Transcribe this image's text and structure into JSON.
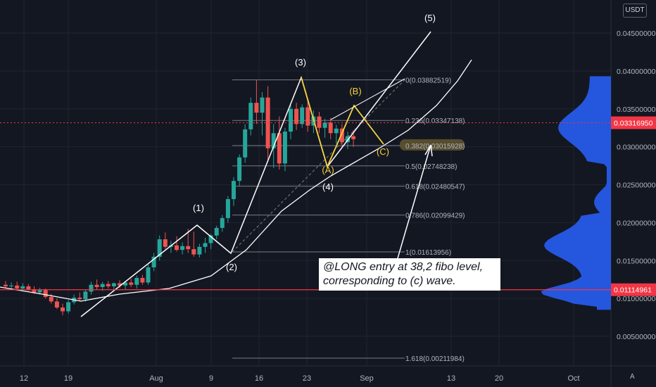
{
  "currency_button": "USDT",
  "auto_button": "A",
  "note_lines": [
    "@LONG entry at 38,2 fibo level,",
    "corresponding to (c) wave."
  ],
  "colors": {
    "background": "#131722",
    "grid": "#1f2430",
    "up": "#26a69a",
    "down": "#ef5350",
    "dim_up": "#26a69a",
    "trend_line": "#ffffff",
    "highlight_yellow": "#f5d33c",
    "price_line_red": "#f23645",
    "volume_profile": "#2962ff",
    "fib_line": "#787b86"
  },
  "chart_data": {
    "type": "candlestick",
    "price_axis": {
      "ticks": [
        "0.04500000",
        "0.04000000",
        "0.03500000",
        "0.03000000",
        "0.02500000",
        "0.02000000",
        "0.01500000",
        "0.01000000",
        "0.00500000"
      ],
      "ylim": [
        0.0,
        0.049
      ]
    },
    "time_axis": [
      "12",
      "19",
      "Aug",
      "9",
      "16",
      "23",
      "Sep",
      "13",
      "20",
      "Oct"
    ],
    "price_markers": [
      {
        "value": 0.0331695,
        "label": "0.03316950",
        "color": "#f23645"
      },
      {
        "value": 0.01114961,
        "label": "0.01114961",
        "color": "#f23645"
      }
    ],
    "fibonacci": [
      {
        "ratio": "0",
        "value": "0.03882519"
      },
      {
        "ratio": "0.236",
        "value": "0.03347138"
      },
      {
        "ratio": "0.382",
        "value": "0.03015928"
      },
      {
        "ratio": "0.5",
        "value": "0.02748238"
      },
      {
        "ratio": "0.618",
        "value": "0.02480547"
      },
      {
        "ratio": "0.786",
        "value": "0.02099429"
      },
      {
        "ratio": "1",
        "value": "0.01613956"
      },
      {
        "ratio": "1.618",
        "value": "0.00211984"
      }
    ],
    "wave_labels": [
      {
        "text": "(1)",
        "color": "white"
      },
      {
        "text": "(2)",
        "color": "white"
      },
      {
        "text": "(3)",
        "color": "white"
      },
      {
        "text": "(4)",
        "color": "white"
      },
      {
        "text": "(5)",
        "color": "white"
      },
      {
        "text": "(A)",
        "color": "yellow"
      },
      {
        "text": "(B)",
        "color": "yellow"
      },
      {
        "text": "(C)",
        "color": "yellow"
      }
    ],
    "candles": [
      {
        "o": 0.0118,
        "h": 0.0123,
        "l": 0.0114,
        "c": 0.0116
      },
      {
        "o": 0.0116,
        "h": 0.0121,
        "l": 0.0112,
        "c": 0.0117
      },
      {
        "o": 0.0117,
        "h": 0.0122,
        "l": 0.011,
        "c": 0.0113
      },
      {
        "o": 0.0113,
        "h": 0.012,
        "l": 0.0111,
        "c": 0.0116
      },
      {
        "o": 0.0116,
        "h": 0.0119,
        "l": 0.011,
        "c": 0.0112
      },
      {
        "o": 0.0112,
        "h": 0.0116,
        "l": 0.0106,
        "c": 0.0108
      },
      {
        "o": 0.0108,
        "h": 0.0114,
        "l": 0.0105,
        "c": 0.0111
      },
      {
        "o": 0.0111,
        "h": 0.0113,
        "l": 0.01,
        "c": 0.0102
      },
      {
        "o": 0.0102,
        "h": 0.0106,
        "l": 0.0093,
        "c": 0.0096
      },
      {
        "o": 0.0096,
        "h": 0.01,
        "l": 0.0086,
        "c": 0.0088
      },
      {
        "o": 0.0088,
        "h": 0.0093,
        "l": 0.0078,
        "c": 0.0083
      },
      {
        "o": 0.0083,
        "h": 0.0098,
        "l": 0.008,
        "c": 0.0095
      },
      {
        "o": 0.0095,
        "h": 0.0105,
        "l": 0.0092,
        "c": 0.0101
      },
      {
        "o": 0.0101,
        "h": 0.0108,
        "l": 0.0097,
        "c": 0.0099
      },
      {
        "o": 0.0099,
        "h": 0.0112,
        "l": 0.0096,
        "c": 0.0109
      },
      {
        "o": 0.0109,
        "h": 0.0122,
        "l": 0.0105,
        "c": 0.0118
      },
      {
        "o": 0.0118,
        "h": 0.0125,
        "l": 0.0112,
        "c": 0.0115
      },
      {
        "o": 0.0115,
        "h": 0.0122,
        "l": 0.011,
        "c": 0.0119
      },
      {
        "o": 0.0119,
        "h": 0.0123,
        "l": 0.0113,
        "c": 0.0116
      },
      {
        "o": 0.0116,
        "h": 0.0121,
        "l": 0.0112,
        "c": 0.012
      },
      {
        "o": 0.012,
        "h": 0.0124,
        "l": 0.0114,
        "c": 0.0117
      },
      {
        "o": 0.0117,
        "h": 0.0123,
        "l": 0.0112,
        "c": 0.0121
      },
      {
        "o": 0.0121,
        "h": 0.0126,
        "l": 0.0115,
        "c": 0.0118
      },
      {
        "o": 0.0118,
        "h": 0.013,
        "l": 0.0113,
        "c": 0.0127
      },
      {
        "o": 0.0127,
        "h": 0.0131,
        "l": 0.0118,
        "c": 0.0121
      },
      {
        "o": 0.0121,
        "h": 0.0145,
        "l": 0.0118,
        "c": 0.0141
      },
      {
        "o": 0.0141,
        "h": 0.016,
        "l": 0.0136,
        "c": 0.0155
      },
      {
        "o": 0.0155,
        "h": 0.0183,
        "l": 0.015,
        "c": 0.0178
      },
      {
        "o": 0.0178,
        "h": 0.0187,
        "l": 0.0165,
        "c": 0.0168
      },
      {
        "o": 0.0168,
        "h": 0.0176,
        "l": 0.016,
        "c": 0.017
      },
      {
        "o": 0.017,
        "h": 0.0182,
        "l": 0.0162,
        "c": 0.0164
      },
      {
        "o": 0.0164,
        "h": 0.0174,
        "l": 0.0158,
        "c": 0.0169
      },
      {
        "o": 0.0169,
        "h": 0.0192,
        "l": 0.016,
        "c": 0.0165
      },
      {
        "o": 0.0165,
        "h": 0.0188,
        "l": 0.0155,
        "c": 0.0158
      },
      {
        "o": 0.0158,
        "h": 0.0172,
        "l": 0.0154,
        "c": 0.0168
      },
      {
        "o": 0.0168,
        "h": 0.018,
        "l": 0.016,
        "c": 0.0173
      },
      {
        "o": 0.0173,
        "h": 0.0185,
        "l": 0.0165,
        "c": 0.0183
      },
      {
        "o": 0.0183,
        "h": 0.0196,
        "l": 0.0178,
        "c": 0.0193
      },
      {
        "o": 0.0193,
        "h": 0.021,
        "l": 0.0188,
        "c": 0.0206
      },
      {
        "o": 0.0206,
        "h": 0.0235,
        "l": 0.02,
        "c": 0.0231
      },
      {
        "o": 0.0231,
        "h": 0.026,
        "l": 0.0222,
        "c": 0.0255
      },
      {
        "o": 0.0255,
        "h": 0.029,
        "l": 0.0248,
        "c": 0.0286
      },
      {
        "o": 0.0286,
        "h": 0.033,
        "l": 0.0279,
        "c": 0.0323
      },
      {
        "o": 0.0323,
        "h": 0.0365,
        "l": 0.0315,
        "c": 0.0358
      },
      {
        "o": 0.0358,
        "h": 0.0388,
        "l": 0.033,
        "c": 0.0345
      },
      {
        "o": 0.0345,
        "h": 0.0372,
        "l": 0.0315,
        "c": 0.0365
      },
      {
        "o": 0.0365,
        "h": 0.038,
        "l": 0.028,
        "c": 0.0298
      },
      {
        "o": 0.0298,
        "h": 0.033,
        "l": 0.0272,
        "c": 0.0318
      },
      {
        "o": 0.0318,
        "h": 0.034,
        "l": 0.027,
        "c": 0.0278
      },
      {
        "o": 0.0278,
        "h": 0.0325,
        "l": 0.0268,
        "c": 0.032
      },
      {
        "o": 0.032,
        "h": 0.0355,
        "l": 0.031,
        "c": 0.035
      },
      {
        "o": 0.035,
        "h": 0.0358,
        "l": 0.0322,
        "c": 0.033
      },
      {
        "o": 0.033,
        "h": 0.0356,
        "l": 0.0325,
        "c": 0.0352
      },
      {
        "o": 0.0352,
        "h": 0.0362,
        "l": 0.032,
        "c": 0.0328
      },
      {
        "o": 0.0328,
        "h": 0.0348,
        "l": 0.0318,
        "c": 0.034
      },
      {
        "o": 0.034,
        "h": 0.0346,
        "l": 0.0318,
        "c": 0.0325
      },
      {
        "o": 0.0325,
        "h": 0.0337,
        "l": 0.0312,
        "c": 0.0332
      },
      {
        "o": 0.0332,
        "h": 0.0338,
        "l": 0.031,
        "c": 0.0318
      },
      {
        "o": 0.0318,
        "h": 0.0329,
        "l": 0.0304,
        "c": 0.0324
      },
      {
        "o": 0.0324,
        "h": 0.033,
        "l": 0.03,
        "c": 0.0306
      },
      {
        "o": 0.0306,
        "h": 0.032,
        "l": 0.0297,
        "c": 0.0314
      },
      {
        "o": 0.0314,
        "h": 0.0322,
        "l": 0.03,
        "c": 0.031
      }
    ]
  }
}
